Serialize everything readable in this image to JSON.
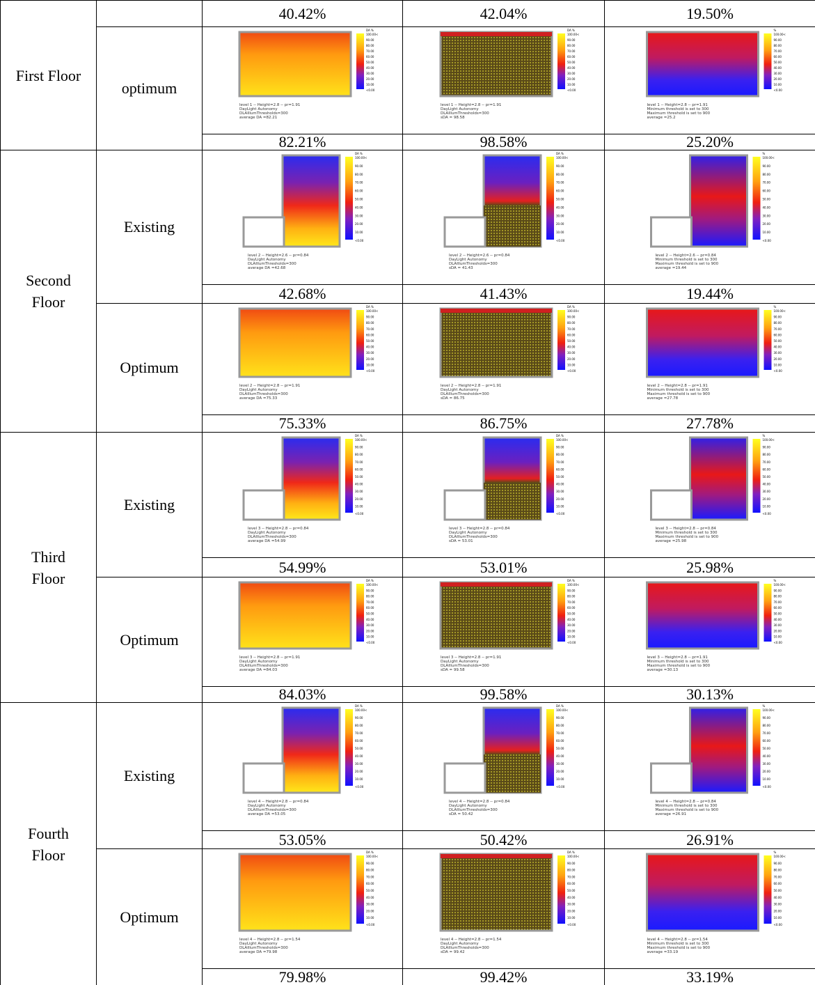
{
  "table": {
    "legend": {
      "titles": [
        "DA %",
        "DA %",
        "%"
      ],
      "ticks": [
        "100.00<",
        "90.00",
        "80.00",
        "70.00",
        "60.00",
        "50.00",
        "40.00",
        "30.00",
        "20.00",
        "10.00",
        "<0.00"
      ]
    },
    "floors": [
      {
        "name": "First Floor",
        "groups": [
          {
            "values": [
              "40.42%",
              "42.04%",
              "19.50%"
            ]
          },
          {
            "label": "optimum",
            "captions": [
              [
                "level 1 -- Height=2.8 -- pr=1.91",
                "DayLight Autonomy",
                "DLAIllumThresholds=300",
                "average DA =82.21"
              ],
              [
                "level 1 -- Height=2.8 -- pr=1.91",
                "DayLight Autonomy",
                "DLAIllumThresholds=300",
                "sDA = 98.58"
              ],
              [
                "level 1 -- Height=2.8 -- pr=1.91",
                "Minimum threshold is set to 300",
                "Maximum threshold is set to 900",
                "average =25.2"
              ]
            ],
            "values": [
              "82.21%",
              "98.58%",
              "25.20%"
            ]
          }
        ]
      },
      {
        "name": "Second Floor",
        "groups": [
          {
            "label": "Existing",
            "captions": [
              [
                "level 2 -- Height=2.6 -- pr=0.84",
                "DayLight Autonomy",
                "DLAIllumThresholds=300",
                "average DA =42.68"
              ],
              [
                "level 2 -- Height=2.6 -- pr=0.84",
                "DayLight Autonomy",
                "DLAIllumThresholds=300",
                "sDA = 41.43"
              ],
              [
                "level 2 -- Height=2.6 -- pr=0.84",
                "Minimum threshold is set to 300",
                "Maximum threshold is set to 900",
                "average =19.44"
              ]
            ],
            "values": [
              "42.68%",
              "41.43%",
              "19.44%"
            ]
          },
          {
            "label": "Optimum",
            "captions": [
              [
                "level 2 -- Height=2.8 -- pr=1.91",
                "DayLight Autonomy",
                "DLAIllumThresholds=300",
                "average DA =75.33"
              ],
              [
                "level 2 -- Height=2.8 -- pr=1.91",
                "DayLight Autonomy",
                "DLAIllumThresholds=300",
                "sDA = 86.75"
              ],
              [
                "level 2 -- Height=2.8 -- pr=1.91",
                "Minimum threshold is set to 300",
                "Maximum threshold is set to 900",
                "average =27.78"
              ]
            ],
            "values": [
              "75.33%",
              "86.75%",
              "27.78%"
            ]
          }
        ]
      },
      {
        "name": "Third Floor",
        "groups": [
          {
            "label": "Existing",
            "captions": [
              [
                "level 3 -- Height=2.8 -- pr=0.84",
                "DayLight Autonomy",
                "DLAIllumThresholds=300",
                "average DA =54.99"
              ],
              [
                "level 3 -- Height=2.8 -- pr=0.84",
                "DayLight Autonomy",
                "DLAIllumThresholds=300",
                "sDA = 53.01"
              ],
              [
                "level 3 -- Height=2.8 -- pr=0.84",
                "Minimum threshold is set to 300",
                "Maximum threshold is set to 900",
                "average =25.98"
              ]
            ],
            "values": [
              "54.99%",
              "53.01%",
              "25.98%"
            ]
          },
          {
            "label": "Optimum",
            "captions": [
              [
                "level 3 -- Height=2.8 -- pr=1.91",
                "DayLight Autonomy",
                "DLAIllumThresholds=300",
                "average DA =84.03"
              ],
              [
                "level 3 -- Height=2.8 -- pr=1.91",
                "DayLight Autonomy",
                "DLAIllumThresholds=300",
                "sDA = 99.58"
              ],
              [
                "level 3 -- Height=2.8 -- pr=1.91",
                "Minimum threshold is set to 300",
                "Maximum threshold is set to 900",
                "average =30.13"
              ]
            ],
            "values": [
              "84.03%",
              "99.58%",
              "30.13%"
            ]
          }
        ]
      },
      {
        "name": "Fourth Floor",
        "groups": [
          {
            "label": "Existing",
            "captions": [
              [
                "level 4 -- Height=2.8 -- pr=0.84",
                "DayLight Autonomy",
                "DLAIllumThresholds=300",
                "average DA =53.05"
              ],
              [
                "level 4 -- Height=2.8 -- pr=0.84",
                "DayLight Autonomy",
                "DLAIllumThresholds=300",
                "sDA = 50.42"
              ],
              [
                "level 4 -- Height=2.8 -- pr=0.84",
                "Minimum threshold is set to 300",
                "Maximum threshold is set to 900",
                "average =26.91"
              ]
            ],
            "values": [
              "53.05%",
              "50.42%",
              "26.91%"
            ]
          },
          {
            "label": "Optimum",
            "captions": [
              [
                "level 4 -- Height=2.8 -- pr=1.54",
                "DayLight Autonomy",
                "DLAIllumThresholds=300",
                "average DA =79.98"
              ],
              [
                "level 4 -- Height=2.8 -- pr=1.54",
                "DayLight Autonomy",
                "DLAIllumThresholds=300",
                "sDA = 99.42"
              ],
              [
                "level 4 -- Height=2.8 -- pr=1.54",
                "Minimum threshold is set to 300",
                "Maximum threshold is set to 900",
                "average =33.19"
              ]
            ],
            "values": [
              "79.98%",
              "99.42%",
              "33.19%"
            ]
          }
        ]
      }
    ]
  }
}
